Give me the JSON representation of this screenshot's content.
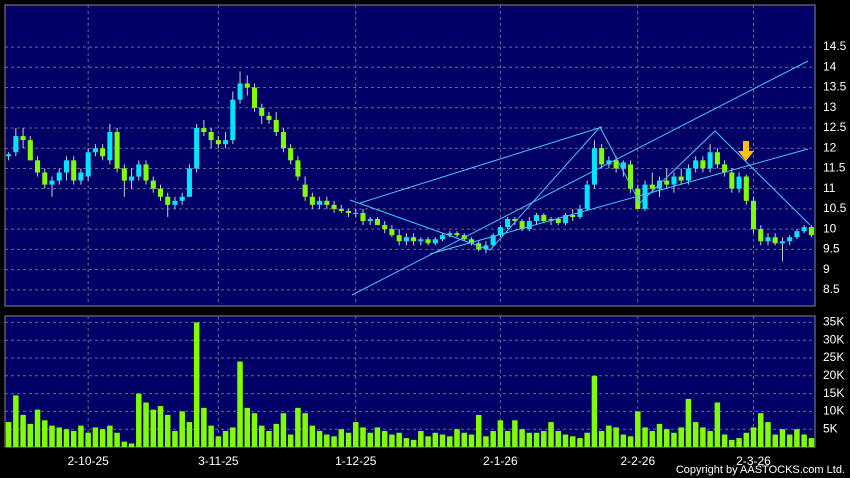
{
  "chart_data": {
    "type": "candlestick",
    "up_color": "#00e5ff",
    "down_color": "#80ff00",
    "volume_color": "#80ff00",
    "categories": [
      null,
      null,
      null,
      null,
      null,
      null,
      null,
      null,
      null,
      null,
      null,
      "2-10-25",
      null,
      null,
      null,
      null,
      null,
      null,
      null,
      null,
      null,
      null,
      null,
      null,
      null,
      null,
      null,
      null,
      null,
      "3-11-25",
      null,
      null,
      null,
      null,
      null,
      null,
      null,
      null,
      null,
      null,
      null,
      null,
      null,
      null,
      null,
      null,
      null,
      null,
      "1-12-25",
      null,
      null,
      null,
      null,
      null,
      null,
      null,
      null,
      null,
      null,
      null,
      null,
      null,
      null,
      null,
      null,
      null,
      null,
      null,
      "2-1-26",
      null,
      null,
      null,
      null,
      null,
      null,
      null,
      null,
      null,
      null,
      null,
      null,
      null,
      null,
      null,
      null,
      null,
      null,
      "2-2-26",
      null,
      null,
      null,
      null,
      null,
      null,
      null,
      null,
      null,
      null,
      null,
      null,
      null,
      null,
      null,
      "2-3-26",
      null,
      null,
      null,
      null,
      null,
      null,
      null,
      null
    ],
    "ohlc": [
      [
        11.8,
        11.9,
        11.7,
        11.85
      ],
      [
        11.9,
        12.5,
        11.8,
        12.3
      ],
      [
        12.3,
        12.5,
        12.0,
        12.2
      ],
      [
        12.2,
        12.3,
        11.7,
        11.7
      ],
      [
        11.7,
        11.8,
        11.3,
        11.4
      ],
      [
        11.4,
        11.5,
        11.0,
        11.1
      ],
      [
        11.1,
        11.3,
        10.8,
        11.2
      ],
      [
        11.2,
        11.5,
        11.1,
        11.4
      ],
      [
        11.4,
        11.8,
        11.2,
        11.7
      ],
      [
        11.7,
        11.8,
        11.1,
        11.2
      ],
      [
        11.2,
        11.5,
        11.1,
        11.4
      ],
      [
        11.3,
        12.0,
        11.2,
        11.9
      ],
      [
        11.9,
        12.1,
        11.8,
        12.0
      ],
      [
        12.0,
        12.1,
        11.7,
        11.8
      ],
      [
        11.7,
        12.6,
        11.6,
        12.4
      ],
      [
        12.4,
        12.5,
        11.4,
        11.5
      ],
      [
        11.5,
        11.6,
        10.8,
        11.2
      ],
      [
        11.2,
        11.5,
        11.0,
        11.3
      ],
      [
        11.3,
        11.7,
        11.2,
        11.6
      ],
      [
        11.6,
        11.7,
        11.1,
        11.2
      ],
      [
        11.2,
        11.3,
        10.9,
        11.0
      ],
      [
        11.0,
        11.1,
        10.7,
        10.8
      ],
      [
        10.8,
        10.9,
        10.3,
        10.6
      ],
      [
        10.6,
        10.8,
        10.5,
        10.7
      ],
      [
        10.7,
        10.9,
        10.6,
        10.8
      ],
      [
        10.8,
        11.6,
        10.8,
        11.5
      ],
      [
        11.5,
        12.6,
        11.4,
        12.5
      ],
      [
        12.5,
        12.7,
        12.3,
        12.4
      ],
      [
        12.4,
        12.5,
        12.0,
        12.2
      ],
      [
        12.2,
        12.3,
        12.0,
        12.1
      ],
      [
        12.1,
        12.4,
        12.0,
        12.2
      ],
      [
        12.2,
        13.4,
        12.1,
        13.2
      ],
      [
        13.2,
        13.9,
        13.1,
        13.6
      ],
      [
        13.6,
        13.8,
        13.3,
        13.5
      ],
      [
        13.5,
        13.6,
        12.9,
        13.0
      ],
      [
        13.0,
        13.1,
        12.6,
        12.8
      ],
      [
        12.8,
        12.9,
        12.6,
        12.7
      ],
      [
        12.7,
        12.9,
        12.3,
        12.4
      ],
      [
        12.4,
        12.5,
        11.9,
        12.0
      ],
      [
        12.0,
        12.1,
        11.6,
        11.7
      ],
      [
        11.7,
        11.8,
        11.2,
        11.3
      ],
      [
        11.1,
        11.3,
        10.7,
        10.8
      ],
      [
        10.8,
        10.9,
        10.5,
        10.6
      ],
      [
        10.6,
        10.8,
        10.5,
        10.7
      ],
      [
        10.7,
        10.8,
        10.5,
        10.6
      ],
      [
        10.6,
        10.7,
        10.4,
        10.5
      ],
      [
        10.5,
        10.6,
        10.4,
        10.45
      ],
      [
        10.45,
        10.5,
        10.3,
        10.4
      ],
      [
        10.4,
        10.5,
        10.3,
        10.4
      ],
      [
        10.4,
        10.5,
        10.1,
        10.2
      ],
      [
        10.2,
        10.3,
        10.1,
        10.25
      ],
      [
        10.25,
        10.3,
        10.1,
        10.1
      ],
      [
        10.1,
        10.2,
        9.9,
        10.0
      ],
      [
        10.0,
        10.1,
        9.8,
        9.85
      ],
      [
        9.85,
        10.0,
        9.6,
        9.7
      ],
      [
        9.7,
        9.9,
        9.6,
        9.8
      ],
      [
        9.8,
        9.9,
        9.6,
        9.7
      ],
      [
        9.7,
        9.8,
        9.6,
        9.75
      ],
      [
        9.75,
        9.8,
        9.6,
        9.65
      ],
      [
        9.65,
        9.8,
        9.6,
        9.75
      ],
      [
        9.75,
        9.9,
        9.7,
        9.85
      ],
      [
        9.85,
        9.95,
        9.8,
        9.9
      ],
      [
        9.9,
        9.95,
        9.8,
        9.85
      ],
      [
        9.85,
        9.9,
        9.7,
        9.75
      ],
      [
        9.75,
        9.8,
        9.6,
        9.65
      ],
      [
        9.65,
        9.7,
        9.45,
        9.5
      ],
      [
        9.5,
        9.7,
        9.4,
        9.6
      ],
      [
        9.6,
        9.9,
        9.55,
        9.85
      ],
      [
        9.85,
        10.1,
        9.8,
        10.05
      ],
      [
        10.05,
        10.3,
        10.0,
        10.25
      ],
      [
        10.25,
        10.3,
        10.1,
        10.2
      ],
      [
        10.2,
        10.25,
        9.95,
        10.0
      ],
      [
        10.0,
        10.3,
        9.95,
        10.2
      ],
      [
        10.2,
        10.4,
        10.1,
        10.35
      ],
      [
        10.35,
        10.4,
        10.15,
        10.2
      ],
      [
        10.2,
        10.3,
        10.1,
        10.25
      ],
      [
        10.25,
        10.3,
        10.1,
        10.15
      ],
      [
        10.15,
        10.4,
        10.1,
        10.35
      ],
      [
        10.35,
        10.5,
        10.2,
        10.3
      ],
      [
        10.3,
        10.6,
        10.25,
        10.5
      ],
      [
        10.5,
        11.2,
        10.45,
        11.1
      ],
      [
        11.1,
        12.2,
        11.0,
        12.0
      ],
      [
        12.0,
        12.1,
        11.5,
        11.6
      ],
      [
        11.6,
        11.8,
        11.5,
        11.7
      ],
      [
        11.7,
        11.8,
        11.4,
        11.5
      ],
      [
        11.5,
        11.7,
        11.3,
        11.65
      ],
      [
        11.6,
        11.7,
        10.9,
        11.0
      ],
      [
        11.0,
        11.1,
        10.5,
        10.5
      ],
      [
        10.5,
        11.2,
        10.45,
        11.1
      ],
      [
        11.1,
        11.4,
        10.9,
        11.0
      ],
      [
        11.0,
        11.3,
        10.8,
        11.2
      ],
      [
        11.2,
        11.5,
        11.0,
        11.1
      ],
      [
        11.1,
        11.4,
        10.9,
        11.3
      ],
      [
        11.3,
        11.5,
        11.1,
        11.2
      ],
      [
        11.2,
        11.6,
        11.1,
        11.5
      ],
      [
        11.5,
        11.8,
        11.4,
        11.7
      ],
      [
        11.7,
        11.8,
        11.4,
        11.5
      ],
      [
        11.5,
        12.1,
        11.4,
        11.9
      ],
      [
        11.9,
        12.0,
        11.5,
        11.6
      ],
      [
        11.6,
        11.7,
        11.3,
        11.4
      ],
      [
        11.4,
        11.5,
        10.9,
        11.0
      ],
      [
        11.0,
        11.4,
        10.9,
        11.3
      ],
      [
        11.3,
        11.35,
        10.6,
        10.7
      ],
      [
        10.7,
        10.8,
        9.9,
        10.0
      ],
      [
        10.0,
        10.1,
        9.6,
        9.7
      ],
      [
        9.7,
        9.9,
        9.6,
        9.8
      ],
      [
        9.8,
        9.9,
        9.6,
        9.65
      ],
      [
        9.65,
        9.8,
        9.2,
        9.7
      ],
      [
        9.7,
        9.85,
        9.6,
        9.8
      ],
      [
        9.8,
        10.0,
        9.75,
        9.95
      ],
      [
        9.95,
        10.1,
        9.9,
        10.05
      ],
      [
        10.05,
        10.1,
        9.8,
        9.85
      ]
    ],
    "volume": [
      7000,
      14500,
      9000,
      6500,
      10500,
      7500,
      6000,
      5500,
      5000,
      4500,
      6000,
      4000,
      5500,
      5000,
      6000,
      4000,
      1500,
      1000,
      15000,
      12500,
      10500,
      11500,
      9000,
      4500,
      10000,
      7000,
      35000,
      11000,
      6000,
      3000,
      4500,
      5500,
      24000,
      11000,
      9500,
      6000,
      4500,
      6500,
      9500,
      3500,
      11000,
      9500,
      6000,
      4500,
      3500,
      3000,
      5000,
      4000,
      7000,
      5500,
      4000,
      5500,
      4500,
      3500,
      4000,
      2500,
      2000,
      4500,
      3000,
      4000,
      3500,
      3000,
      5000,
      4000,
      3500,
      9000,
      3000,
      4500,
      7500,
      4500,
      7500,
      5000,
      4000,
      4000,
      4500,
      7000,
      4500,
      3500,
      3000,
      2500,
      4000,
      20000,
      4500,
      6000,
      5500,
      3500,
      3000,
      10000,
      5500,
      4500,
      6500,
      5000,
      4000,
      5500,
      13500,
      7000,
      5500,
      4500,
      12500,
      3500,
      2000,
      2500,
      4000,
      5500,
      9500,
      7000,
      3500,
      5000,
      3500,
      5000,
      3500,
      2500
    ],
    "ylim": [
      8.1,
      15.54
    ],
    "yticks": [
      8.5,
      9,
      9.5,
      10,
      10.5,
      11,
      11.5,
      12,
      12.5,
      13,
      13.5,
      14,
      14.5
    ],
    "y2lim": [
      0,
      36800
    ],
    "y2ticks": [
      {
        "value": 5000,
        "label": "5K"
      },
      {
        "value": 10000,
        "label": "10K"
      },
      {
        "value": 15000,
        "label": "15K"
      },
      {
        "value": 20000,
        "label": "20K"
      },
      {
        "value": 25000,
        "label": "25K"
      },
      {
        "value": 30000,
        "label": "30K"
      },
      {
        "value": 35000,
        "label": "35K"
      }
    ],
    "grid": true,
    "copyright": "Copyright by AASTOCKS.com Ltd."
  }
}
